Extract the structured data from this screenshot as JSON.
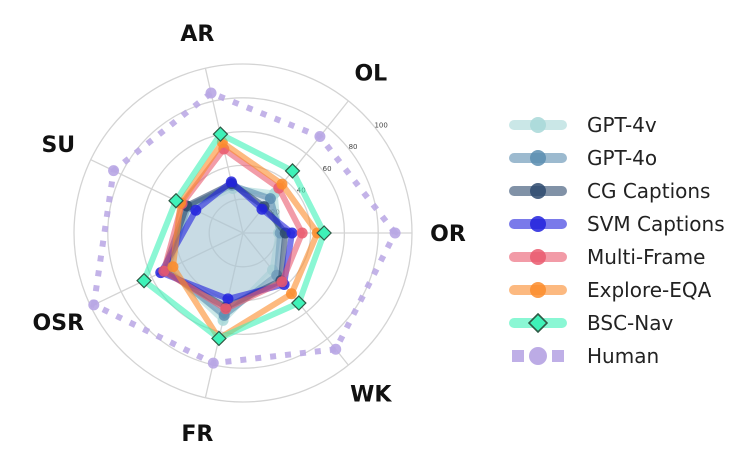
{
  "chart_data": {
    "type": "radar",
    "title": "",
    "axes": [
      "OR",
      "OL",
      "AR",
      "SU",
      "OSR",
      "FR",
      "WK"
    ],
    "radial_ticks": [
      20,
      40,
      60,
      80,
      100
    ],
    "rlim": [
      0,
      100
    ],
    "grid": true,
    "legend_position": "right",
    "series": [
      {
        "name": "GPT-4v",
        "color": "#a8d8d8",
        "marker": "circle",
        "filled": true,
        "values": [
          21,
          30,
          27,
          36,
          49,
          53,
          28
        ]
      },
      {
        "name": "GPT-4o",
        "color": "#5b8db0",
        "marker": "circle",
        "filled": true,
        "values": [
          22,
          26,
          29,
          36,
          50,
          50,
          32
        ]
      },
      {
        "name": "CG Captions",
        "color": "#2e4a6e",
        "marker": "circle",
        "filled": true,
        "values": [
          25,
          20,
          30,
          37,
          52,
          45,
          36
        ]
      },
      {
        "name": "SVM Captions",
        "color": "#2222dd",
        "marker": "circle",
        "filled": false,
        "values": [
          29,
          18,
          31,
          31,
          54,
          40,
          39
        ]
      },
      {
        "name": "Multi-Frame",
        "color": "#ea5a6e",
        "marker": "circle",
        "filled": false,
        "values": [
          35,
          34,
          51,
          40,
          52,
          46,
          37
        ]
      },
      {
        "name": "Explore-EQA",
        "color": "#fb8c2c",
        "marker": "circle",
        "filled": false,
        "values": [
          44,
          37,
          55,
          41,
          46,
          64,
          46
        ]
      },
      {
        "name": "BSC-Nav",
        "color": "#3ef2b8",
        "marker": "diamond",
        "filled": false,
        "values": [
          48,
          47,
          60,
          44,
          65,
          64,
          53
        ]
      },
      {
        "name": "Human",
        "color": "#b8a6e4",
        "marker": "circle",
        "linestyle": "dotted",
        "filled": false,
        "values": [
          90,
          73,
          85,
          85,
          98,
          79,
          88
        ]
      }
    ]
  },
  "legend": {
    "items": [
      {
        "label": "GPT-4v"
      },
      {
        "label": "GPT-4o"
      },
      {
        "label": "CG Captions"
      },
      {
        "label": "SVM Captions"
      },
      {
        "label": "Multi-Frame"
      },
      {
        "label": "Explore-EQA"
      },
      {
        "label": "BSC-Nav"
      },
      {
        "label": "Human"
      }
    ]
  }
}
